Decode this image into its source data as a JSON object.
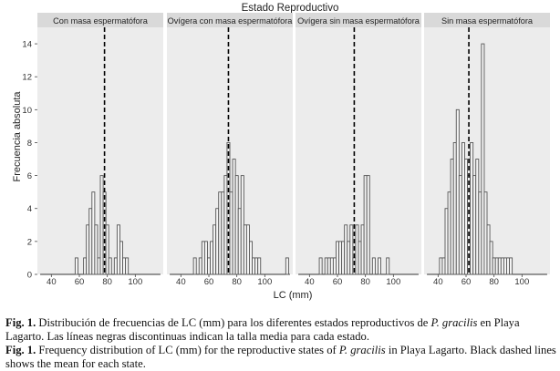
{
  "figure": {
    "title": "Estado Reproductivo",
    "xlabel": "LC (mm)",
    "ylabel": "Frecuencia absoluta"
  },
  "chart_data": [
    {
      "type": "bar",
      "title": "Con masa espermatófora",
      "xlabel": "LC (mm)",
      "ylabel": "Frecuencia absoluta",
      "xlim": [
        30,
        120
      ],
      "ylim": [
        0,
        15
      ],
      "xticks": [
        40,
        60,
        80,
        100
      ],
      "yticks": [
        0,
        2,
        4,
        6,
        8,
        10,
        12,
        14
      ],
      "bin_width": 2,
      "mean": 78,
      "grid": false,
      "x": [
        58,
        64,
        66,
        68,
        70,
        72,
        74,
        76,
        78,
        80,
        82,
        86,
        88,
        90,
        92,
        94
      ],
      "values": [
        1,
        1,
        3,
        4,
        5,
        3,
        1,
        6,
        5,
        3,
        1,
        1,
        3,
        2,
        1,
        1
      ]
    },
    {
      "type": "bar",
      "title": "Ovígera con masa espermatófora",
      "xlabel": "LC (mm)",
      "ylabel": "Frecuencia absoluta",
      "xlim": [
        30,
        120
      ],
      "ylim": [
        0,
        15
      ],
      "xticks": [
        40,
        60,
        80,
        100
      ],
      "yticks": [
        0,
        2,
        4,
        6,
        8,
        10,
        12,
        14
      ],
      "bin_width": 2,
      "mean": 74,
      "grid": false,
      "x": [
        50,
        54,
        56,
        58,
        60,
        62,
        64,
        66,
        68,
        70,
        72,
        74,
        76,
        78,
        80,
        82,
        84,
        86,
        88,
        90,
        92,
        94,
        96,
        116
      ],
      "values": [
        1,
        1,
        2,
        2,
        1,
        2,
        3,
        4,
        5,
        5,
        6,
        8,
        5,
        7,
        6,
        4,
        6,
        3,
        3,
        2,
        1,
        1,
        1,
        1
      ]
    },
    {
      "type": "bar",
      "title": "Ovígera sin masa espermatófora",
      "xlabel": "LC (mm)",
      "ylabel": "Frecuencia absoluta",
      "xlim": [
        30,
        120
      ],
      "ylim": [
        0,
        15
      ],
      "xticks": [
        40,
        60,
        80,
        100
      ],
      "yticks": [
        0,
        2,
        4,
        6,
        8,
        10,
        12,
        14
      ],
      "bin_width": 2,
      "mean": 72,
      "grid": false,
      "x": [
        48,
        52,
        54,
        56,
        58,
        60,
        62,
        64,
        66,
        68,
        70,
        72,
        74,
        76,
        78,
        80,
        82,
        86,
        90,
        96
      ],
      "values": [
        1,
        1,
        1,
        1,
        1,
        2,
        2,
        2,
        3,
        2,
        3,
        1,
        3,
        2,
        3,
        6,
        6,
        1,
        1,
        1
      ]
    },
    {
      "type": "bar",
      "title": "Sin masa espermatófora",
      "xlabel": "LC (mm)",
      "ylabel": "Frecuencia absoluta",
      "xlim": [
        30,
        120
      ],
      "ylim": [
        0,
        15
      ],
      "xticks": [
        40,
        60,
        80,
        100
      ],
      "yticks": [
        0,
        2,
        4,
        6,
        8,
        10,
        12,
        14
      ],
      "bin_width": 2,
      "mean": 62,
      "grid": false,
      "x": [
        42,
        44,
        46,
        48,
        50,
        52,
        54,
        56,
        58,
        60,
        62,
        64,
        66,
        68,
        70,
        72,
        74,
        76,
        78,
        80,
        82,
        84,
        86,
        88,
        90,
        92
      ],
      "values": [
        1,
        1,
        4,
        5,
        7,
        8,
        10,
        6,
        8,
        7,
        6,
        8,
        6,
        7,
        5,
        14,
        5,
        3,
        2,
        1,
        1,
        1,
        1,
        1,
        1,
        1
      ]
    }
  ],
  "caption": {
    "es_label": "Fig. 1.",
    "es_text_a": " Distribución de frecuencias de LC (mm) para los diferentes estados reproductivos de ",
    "es_species": "P. gracilis",
    "es_text_b": " en Playa Lagarto. Las líneas negras discontinuas indican la talla media para cada estado.",
    "en_label": "Fig. 1.",
    "en_text_a": " Frequency distribution of LC (mm) for the reproductive states of ",
    "en_species": "P. gracilis",
    "en_text_b": " in Playa Lagarto. Black dashed lines shows the mean for each state."
  },
  "colors": {
    "panel_bg": "#ececec",
    "strip_bg": "#d9d9d9",
    "bar_fill": "#f4f4f4",
    "bar_edge": "#555555",
    "mean_line": "#000000"
  }
}
